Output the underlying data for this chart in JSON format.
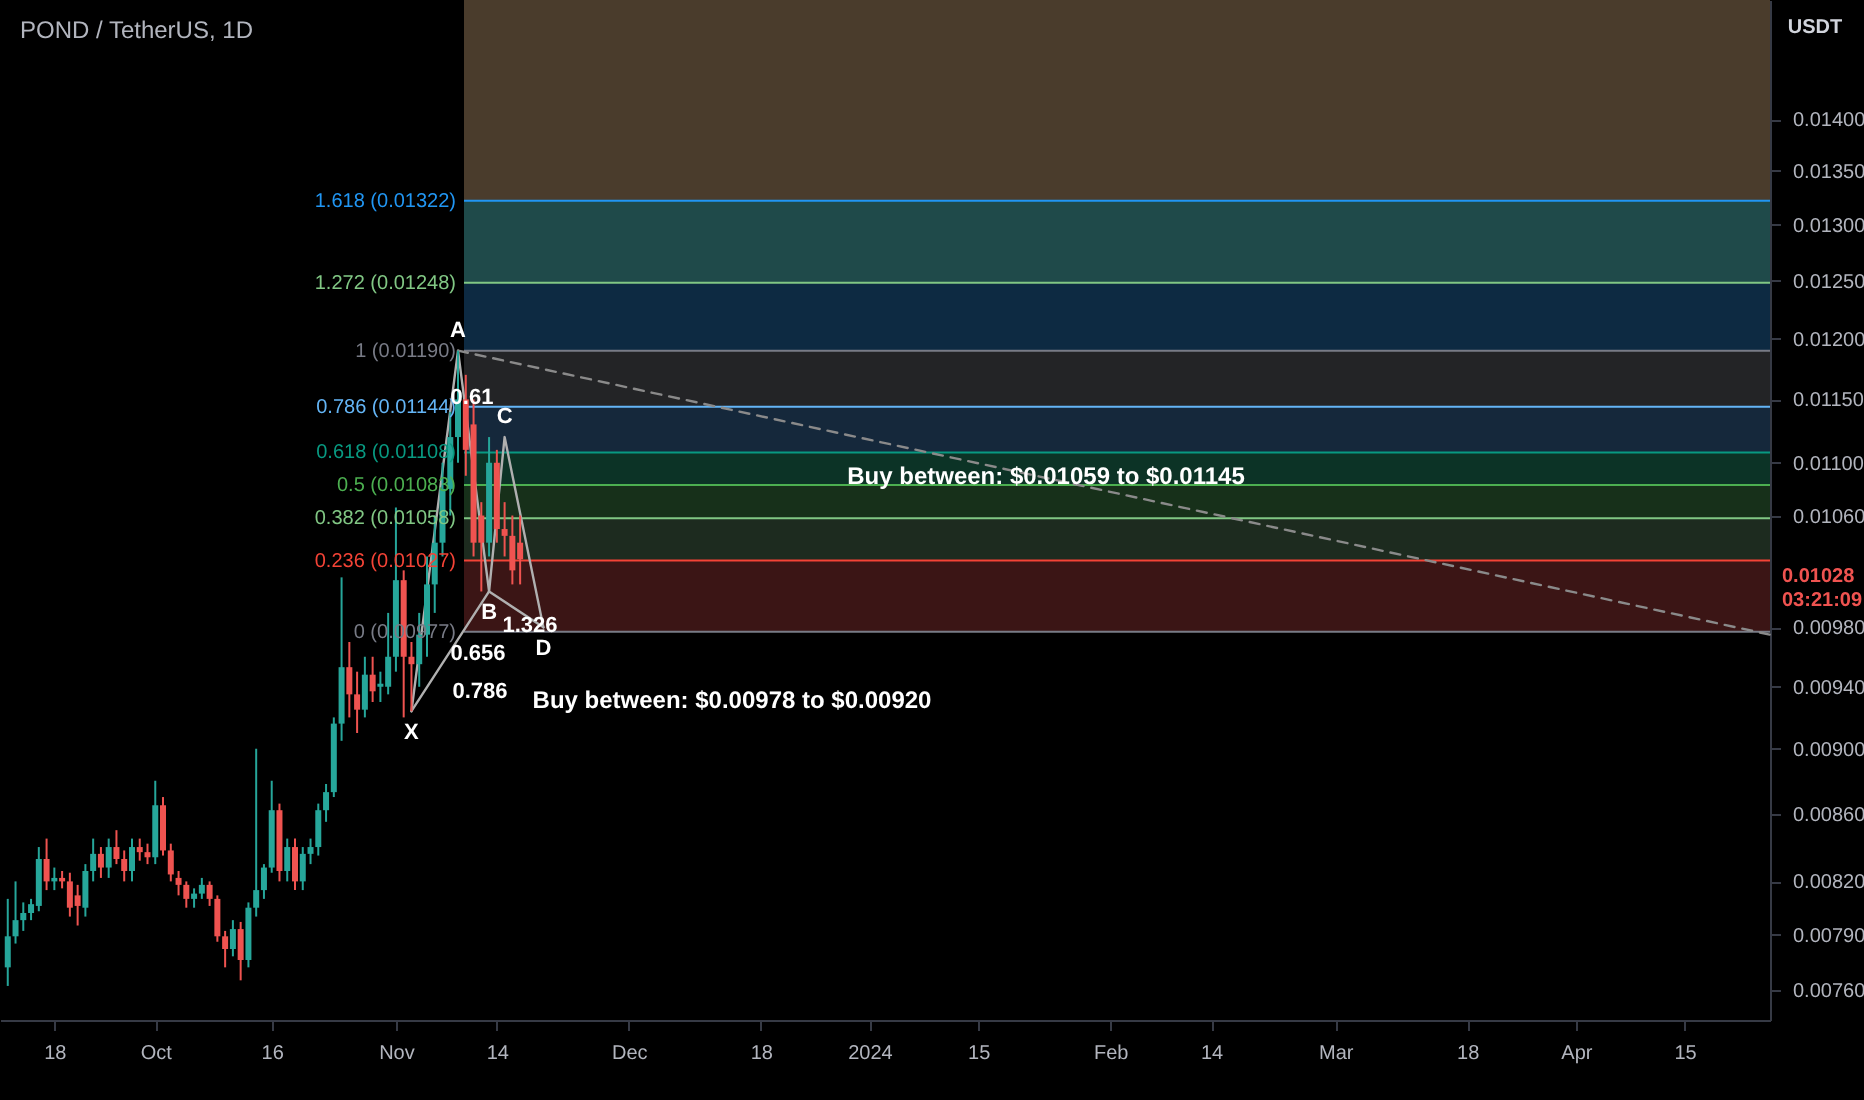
{
  "chart_data": {
    "type": "candlestick",
    "title": "POND / TetherUS, 1D",
    "ylabel": "USDT",
    "x": [
      "2023-09-12",
      "2023-09-13",
      "2023-09-14",
      "2023-09-15",
      "2023-09-16",
      "2023-09-17",
      "2023-09-18",
      "2023-09-19",
      "2023-09-20",
      "2023-09-21",
      "2023-09-22",
      "2023-09-23",
      "2023-09-24",
      "2023-09-25",
      "2023-09-26",
      "2023-09-27",
      "2023-09-28",
      "2023-09-29",
      "2023-09-30",
      "2023-10-01",
      "2023-10-02",
      "2023-10-03",
      "2023-10-04",
      "2023-10-05",
      "2023-10-06",
      "2023-10-07",
      "2023-10-08",
      "2023-10-09",
      "2023-10-10",
      "2023-10-11",
      "2023-10-12",
      "2023-10-13",
      "2023-10-14",
      "2023-10-15",
      "2023-10-16",
      "2023-10-17",
      "2023-10-18",
      "2023-10-19",
      "2023-10-20",
      "2023-10-21",
      "2023-10-22",
      "2023-10-23",
      "2023-10-24",
      "2023-10-25",
      "2023-10-26",
      "2023-10-27",
      "2023-10-28",
      "2023-10-29",
      "2023-10-30",
      "2023-10-31",
      "2023-11-01",
      "2023-11-02",
      "2023-11-03",
      "2023-11-04",
      "2023-11-05",
      "2023-11-06",
      "2023-11-07",
      "2023-11-08",
      "2023-11-09",
      "2023-11-10",
      "2023-11-11",
      "2023-11-12",
      "2023-11-13",
      "2023-11-14",
      "2023-11-15",
      "2023-11-16",
      "2023-11-17"
    ],
    "ohlc": [
      [
        0.00772,
        0.0081,
        0.00762,
        0.00789
      ],
      [
        0.00789,
        0.0082,
        0.00785,
        0.00798
      ],
      [
        0.00798,
        0.00808,
        0.00792,
        0.00802
      ],
      [
        0.00802,
        0.0081,
        0.00798,
        0.00807
      ],
      [
        0.00806,
        0.0084,
        0.00803,
        0.00833
      ],
      [
        0.00833,
        0.00845,
        0.00815,
        0.0082
      ],
      [
        0.0082,
        0.00828,
        0.00815,
        0.00822
      ],
      [
        0.00822,
        0.00826,
        0.00816,
        0.0082
      ],
      [
        0.0082,
        0.00825,
        0.008,
        0.00805
      ],
      [
        0.00812,
        0.00818,
        0.00795,
        0.00806
      ],
      [
        0.00805,
        0.0083,
        0.008,
        0.00826
      ],
      [
        0.00826,
        0.00845,
        0.0082,
        0.00836
      ],
      [
        0.00836,
        0.0084,
        0.00822,
        0.00828
      ],
      [
        0.00828,
        0.00845,
        0.00822,
        0.0084
      ],
      [
        0.0084,
        0.0085,
        0.0083,
        0.00833
      ],
      [
        0.00833,
        0.00838,
        0.0082,
        0.00826
      ],
      [
        0.00826,
        0.00845,
        0.0082,
        0.0084
      ],
      [
        0.0084,
        0.00845,
        0.00832,
        0.00837
      ],
      [
        0.00837,
        0.00842,
        0.0083,
        0.00834
      ],
      [
        0.00834,
        0.0088,
        0.0083,
        0.00865
      ],
      [
        0.00865,
        0.0087,
        0.00835,
        0.00838
      ],
      [
        0.00838,
        0.00842,
        0.0082,
        0.00824
      ],
      [
        0.00822,
        0.00826,
        0.00812,
        0.00818
      ],
      [
        0.00818,
        0.0082,
        0.00805,
        0.0081
      ],
      [
        0.0081,
        0.00816,
        0.00805,
        0.00813
      ],
      [
        0.00813,
        0.00822,
        0.0081,
        0.00818
      ],
      [
        0.00818,
        0.0082,
        0.00806,
        0.0081
      ],
      [
        0.0081,
        0.00812,
        0.00786,
        0.00789
      ],
      [
        0.00789,
        0.00792,
        0.00772,
        0.00782
      ],
      [
        0.00782,
        0.00798,
        0.00778,
        0.00793
      ],
      [
        0.00793,
        0.00797,
        0.00765,
        0.00776
      ],
      [
        0.00776,
        0.00808,
        0.00772,
        0.00805
      ],
      [
        0.00805,
        0.009,
        0.008,
        0.00815
      ],
      [
        0.00815,
        0.0083,
        0.0081,
        0.00828
      ],
      [
        0.00828,
        0.0088,
        0.00825,
        0.00862
      ],
      [
        0.00862,
        0.00866,
        0.0082,
        0.00826
      ],
      [
        0.00826,
        0.00845,
        0.0082,
        0.0084
      ],
      [
        0.0084,
        0.00845,
        0.00815,
        0.0082
      ],
      [
        0.0082,
        0.0084,
        0.00815,
        0.00836
      ],
      [
        0.00836,
        0.00845,
        0.0083,
        0.0084
      ],
      [
        0.0084,
        0.00866,
        0.00835,
        0.00862
      ],
      [
        0.00862,
        0.00878,
        0.00855,
        0.00873
      ],
      [
        0.00873,
        0.0092,
        0.0087,
        0.00916
      ],
      [
        0.00916,
        0.01015,
        0.00905,
        0.00953
      ],
      [
        0.00953,
        0.0097,
        0.0092,
        0.00935
      ],
      [
        0.00935,
        0.0095,
        0.0091,
        0.00925
      ],
      [
        0.00925,
        0.0096,
        0.0092,
        0.00948
      ],
      [
        0.00948,
        0.0096,
        0.0093,
        0.00937
      ],
      [
        0.0094,
        0.0095,
        0.0093,
        0.00942
      ],
      [
        0.0094,
        0.0099,
        0.00935,
        0.0096
      ],
      [
        0.0096,
        0.01066,
        0.0095,
        0.01013
      ],
      [
        0.01013,
        0.0102,
        0.0092,
        0.0096
      ],
      [
        0.0096,
        0.0097,
        0.00924,
        0.00955
      ],
      [
        0.00955,
        0.0099,
        0.0094,
        0.00975
      ],
      [
        0.00975,
        0.0103,
        0.0096,
        0.0101
      ],
      [
        0.0101,
        0.0106,
        0.0099,
        0.0104
      ],
      [
        0.0104,
        0.011,
        0.0103,
        0.0108
      ],
      [
        0.0108,
        0.0114,
        0.0106,
        0.0112
      ],
      [
        0.0112,
        0.0119,
        0.011,
        0.0115
      ],
      [
        0.0115,
        0.0117,
        0.0109,
        0.0111
      ],
      [
        0.0113,
        0.0115,
        0.0103,
        0.0104
      ],
      [
        0.0106,
        0.0107,
        0.01005,
        0.0104
      ],
      [
        0.0104,
        0.0112,
        0.0103,
        0.011
      ],
      [
        0.011,
        0.0111,
        0.0104,
        0.0105
      ],
      [
        0.0105,
        0.0107,
        0.0103,
        0.01045
      ],
      [
        0.01045,
        0.0106,
        0.0101,
        0.0102
      ],
      [
        0.0104,
        0.0106,
        0.0101,
        0.01028
      ]
    ],
    "series": [
      {
        "type": "line",
        "color": "#b0b0b0",
        "x": [
          "2023-11-03",
          "2023-11-09",
          "2023-11-13",
          "2023-11-15",
          "2023-11-20"
        ],
        "values": [
          0.00924,
          0.0119,
          0.01005,
          0.0112,
          0.0098
        ]
      },
      {
        "type": "line",
        "color": "#b0b0b0",
        "x": [
          "2023-11-03",
          "2023-11-13"
        ],
        "values": [
          0.00924,
          0.01005
        ]
      },
      {
        "type": "line",
        "color": "#b0b0b0",
        "x": [
          "2023-11-13",
          "2023-11-20"
        ],
        "values": [
          0.01005,
          0.0098
        ]
      },
      {
        "type": "line",
        "color": "#8a8a8a",
        "line_style": "dashed",
        "x": [
          "2023-11-09",
          "2024-04-26"
        ],
        "values": [
          0.0119,
          0.00975
        ]
      }
    ],
    "xlim": [
      "2023-09-11",
      "2024-04-26"
    ],
    "xticks": [
      {
        "value": "2023-09-18",
        "label": "18"
      },
      {
        "value": "2023-10-01",
        "label": "Oct"
      },
      {
        "value": "2023-10-16",
        "label": "16"
      },
      {
        "value": "2023-11-01",
        "label": "Nov"
      },
      {
        "value": "2023-11-14",
        "label": "14"
      },
      {
        "value": "2023-12-01",
        "label": "Dec"
      },
      {
        "value": "2023-12-18",
        "label": "18"
      },
      {
        "value": "2024-01-01",
        "label": "2024"
      },
      {
        "value": "2024-01-15",
        "label": "15"
      },
      {
        "value": "2024-02-01",
        "label": "Feb"
      },
      {
        "value": "2024-02-14",
        "label": "14"
      },
      {
        "value": "2024-03-01",
        "label": "Mar"
      },
      {
        "value": "2024-03-18",
        "label": "18"
      },
      {
        "value": "2024-04-01",
        "label": "Apr"
      },
      {
        "value": "2024-04-15",
        "label": "15"
      }
    ],
    "ylim": [
      0.00744,
      0.01522
    ],
    "log": true,
    "yticks": [
      {
        "value": 0.0076,
        "label": "0.00760"
      },
      {
        "value": 0.0079,
        "label": "0.00790"
      },
      {
        "value": 0.0082,
        "label": "0.00820"
      },
      {
        "value": 0.0086,
        "label": "0.00860"
      },
      {
        "value": 0.009,
        "label": "0.00900"
      },
      {
        "value": 0.0094,
        "label": "0.00940"
      },
      {
        "value": 0.0098,
        "label": "0.00980"
      },
      {
        "value": 0.0106,
        "label": "0.01060"
      },
      {
        "value": 0.011,
        "label": "0.01100"
      },
      {
        "value": 0.0115,
        "label": "0.01150"
      },
      {
        "value": 0.012,
        "label": "0.01200"
      },
      {
        "value": 0.0125,
        "label": "0.01250"
      },
      {
        "value": 0.013,
        "label": "0.01300"
      },
      {
        "value": 0.0135,
        "label": "0.01350"
      },
      {
        "value": 0.014,
        "label": "0.01400"
      }
    ],
    "bands": [
      {
        "axis": "y",
        "from": 0.01322,
        "to": 0.01522,
        "color": "#4a3c2c"
      },
      {
        "axis": "y",
        "from": 0.01248,
        "to": 0.01322,
        "color": "#1f4a4a"
      },
      {
        "axis": "y",
        "from": 0.0119,
        "to": 0.01248,
        "color": "#0d2a42"
      },
      {
        "axis": "y",
        "from": 0.01144,
        "to": 0.0119,
        "color": "#232426"
      },
      {
        "axis": "y",
        "from": 0.01108,
        "to": 0.01144,
        "color": "#15283b"
      },
      {
        "axis": "y",
        "from": 0.01083,
        "to": 0.01108,
        "color": "#0c3326"
      },
      {
        "axis": "y",
        "from": 0.01058,
        "to": 0.01083,
        "color": "#17301a"
      },
      {
        "axis": "y",
        "from": 0.01027,
        "to": 0.01058,
        "color": "#1d2b1f"
      },
      {
        "axis": "y",
        "from": 0.00977,
        "to": 0.01027,
        "color": "#3b1515"
      }
    ],
    "ref_lines": [
      {
        "axis": "y",
        "value": 0.01322,
        "label": "1.618 (0.01322)",
        "color": "#2196f3"
      },
      {
        "axis": "y",
        "value": 0.01248,
        "label": "1.272 (0.01248)",
        "color": "#81c784"
      },
      {
        "axis": "y",
        "value": 0.0119,
        "label": "1 (0.01190)",
        "color": "#787b86"
      },
      {
        "axis": "y",
        "value": 0.01144,
        "label": "0.786 (0.01144)",
        "color": "#64b5f6"
      },
      {
        "axis": "y",
        "value": 0.01108,
        "label": "0.618 (0.01108)",
        "color": "#089981"
      },
      {
        "axis": "y",
        "value": 0.01083,
        "label": "0.5 (0.01083)",
        "color": "#4caf50"
      },
      {
        "axis": "y",
        "value": 0.01058,
        "label": "0.382 (0.01058)",
        "color": "#81c784"
      },
      {
        "axis": "y",
        "value": 0.01027,
        "label": "0.236 (0.01027)",
        "color": "#f44336"
      },
      {
        "axis": "y",
        "value": 0.00977,
        "label": "0 (0.00977)",
        "color": "#787b86"
      }
    ],
    "annotations": [
      {
        "text": "X",
        "x": "2023-11-03",
        "y": 0.00924
      },
      {
        "text": "A",
        "x": "2023-11-09",
        "y": 0.0119
      },
      {
        "text": "B",
        "x": "2023-11-13",
        "y": 0.01005
      },
      {
        "text": "C",
        "x": "2023-11-15",
        "y": 0.0112
      },
      {
        "text": "D",
        "x": "2023-11-20",
        "y": 0.0098
      },
      "0.61",
      "0.656",
      "0.786",
      "1.326",
      "Buy between: $0.01059 to $0.01145",
      "Buy between: $0.00978 to $0.00920",
      "0.01028",
      "03:21:09"
    ]
  }
}
